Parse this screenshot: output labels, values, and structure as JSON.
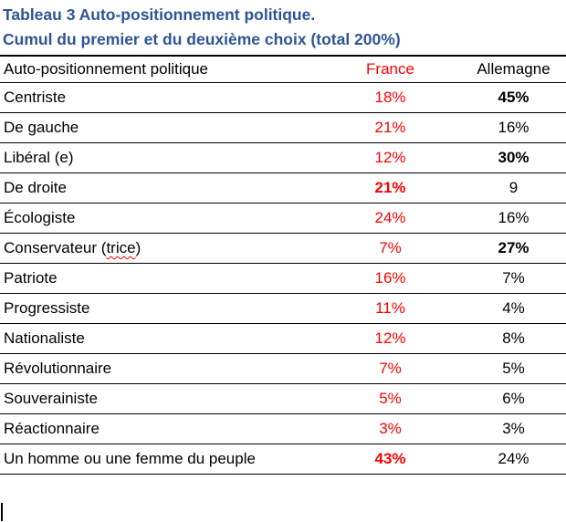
{
  "caption": {
    "line1": "Tableau 3 Auto-positionnement politique.",
    "line2": "Cumul du premier et du deuxième choix (total 200%)"
  },
  "colors": {
    "caption_blue": "#2F5496",
    "accent_red": "#FF0000",
    "text_black": "#000000",
    "rule_black": "#000000"
  },
  "table": {
    "columns": [
      {
        "key": "label",
        "header": "Auto-positionnement politique",
        "align": "left",
        "color": "black"
      },
      {
        "key": "france",
        "header": "France",
        "align": "center",
        "color": "red"
      },
      {
        "key": "allemagne",
        "header": "Allemagne",
        "align": "center",
        "color": "black"
      }
    ],
    "rows": [
      {
        "label": "Centriste",
        "france": "18%",
        "france_bold": false,
        "allemagne": "45%",
        "allemagne_bold": true
      },
      {
        "label": "De gauche",
        "france": "21%",
        "france_bold": false,
        "allemagne": "16%",
        "allemagne_bold": false
      },
      {
        "label": "Libéral (e)",
        "france": "12%",
        "france_bold": false,
        "allemagne": "30%",
        "allemagne_bold": true
      },
      {
        "label": "De droite",
        "france": "21%",
        "france_bold": true,
        "allemagne": "9",
        "allemagne_bold": false
      },
      {
        "label": "Écologiste",
        "france": "24%",
        "france_bold": false,
        "allemagne": "16%",
        "allemagne_bold": false
      },
      {
        "label": "Conservateur (trice)",
        "label_parts": [
          {
            "text": "Conservateur ("
          },
          {
            "text": "trice",
            "spellcheck_wavy": true
          },
          {
            "text": ")"
          }
        ],
        "france": "7%",
        "france_bold": false,
        "allemagne": "27%",
        "allemagne_bold": true
      },
      {
        "label": "Patriote",
        "france": "16%",
        "france_bold": false,
        "allemagne": "7%",
        "allemagne_bold": false
      },
      {
        "label": "Progressiste",
        "france": "11%",
        "france_bold": false,
        "allemagne": "4%",
        "allemagne_bold": false
      },
      {
        "label": "Nationaliste",
        "france": "12%",
        "france_bold": false,
        "allemagne": "8%",
        "allemagne_bold": false
      },
      {
        "label": "Révolutionnaire",
        "france": "7%",
        "france_bold": false,
        "allemagne": "5%",
        "allemagne_bold": false
      },
      {
        "label": "Souverainiste",
        "france": "5%",
        "france_bold": false,
        "allemagne": "6%",
        "allemagne_bold": false
      },
      {
        "label": "Réactionnaire",
        "france": "3%",
        "france_bold": false,
        "allemagne": "3%",
        "allemagne_bold": false
      },
      {
        "label": "Un homme ou une femme du peuple",
        "france": "43%",
        "france_bold": true,
        "allemagne": "24%",
        "allemagne_bold": false
      }
    ]
  },
  "cursor": {
    "visible": true
  }
}
